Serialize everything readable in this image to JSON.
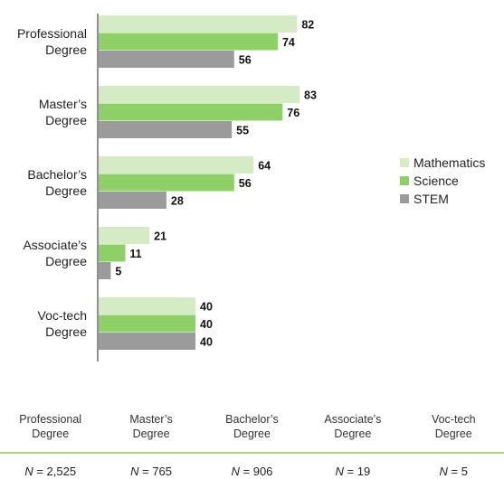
{
  "chart_data": {
    "type": "bar",
    "orientation": "horizontal",
    "categories": [
      "Professional Degree",
      "Master’s Degree",
      "Bachelor’s Degree",
      "Associate’s Degree",
      "Voc-tech Degree"
    ],
    "category_lines": [
      [
        "Professional",
        "Degree"
      ],
      [
        "Master’s",
        "Degree"
      ],
      [
        "Bachelor’s",
        "Degree"
      ],
      [
        "Associate’s",
        "Degree"
      ],
      [
        "Voc-tech",
        "Degree"
      ]
    ],
    "series": [
      {
        "name": "Mathematics",
        "color": "#d4ebc6",
        "values": [
          82,
          83,
          64,
          21,
          40
        ]
      },
      {
        "name": "Science",
        "color": "#8fcf67",
        "values": [
          74,
          76,
          56,
          11,
          40
        ]
      },
      {
        "name": "STEM",
        "color": "#9b9b9b",
        "values": [
          56,
          55,
          28,
          5,
          40
        ]
      }
    ],
    "xlim": [
      0,
      100
    ],
    "grid": false,
    "legend_position": "right",
    "data_labels": true
  },
  "footer": {
    "columns": [
      {
        "lines": [
          "Professional",
          "Degree"
        ],
        "n_prefix": "N",
        "n_value": " = 2,525"
      },
      {
        "lines": [
          "Master’s",
          "Degree"
        ],
        "n_prefix": "N",
        "n_value": " = 765"
      },
      {
        "lines": [
          "Bachelor’s",
          "Degree"
        ],
        "n_prefix": "N",
        "n_value": " = 906"
      },
      {
        "lines": [
          "Associate’s",
          "Degree"
        ],
        "n_prefix": "N",
        "n_value": " = 19"
      },
      {
        "lines": [
          "Voc-tech",
          "Degree"
        ],
        "n_prefix": "N",
        "n_value": " = 5"
      }
    ]
  }
}
